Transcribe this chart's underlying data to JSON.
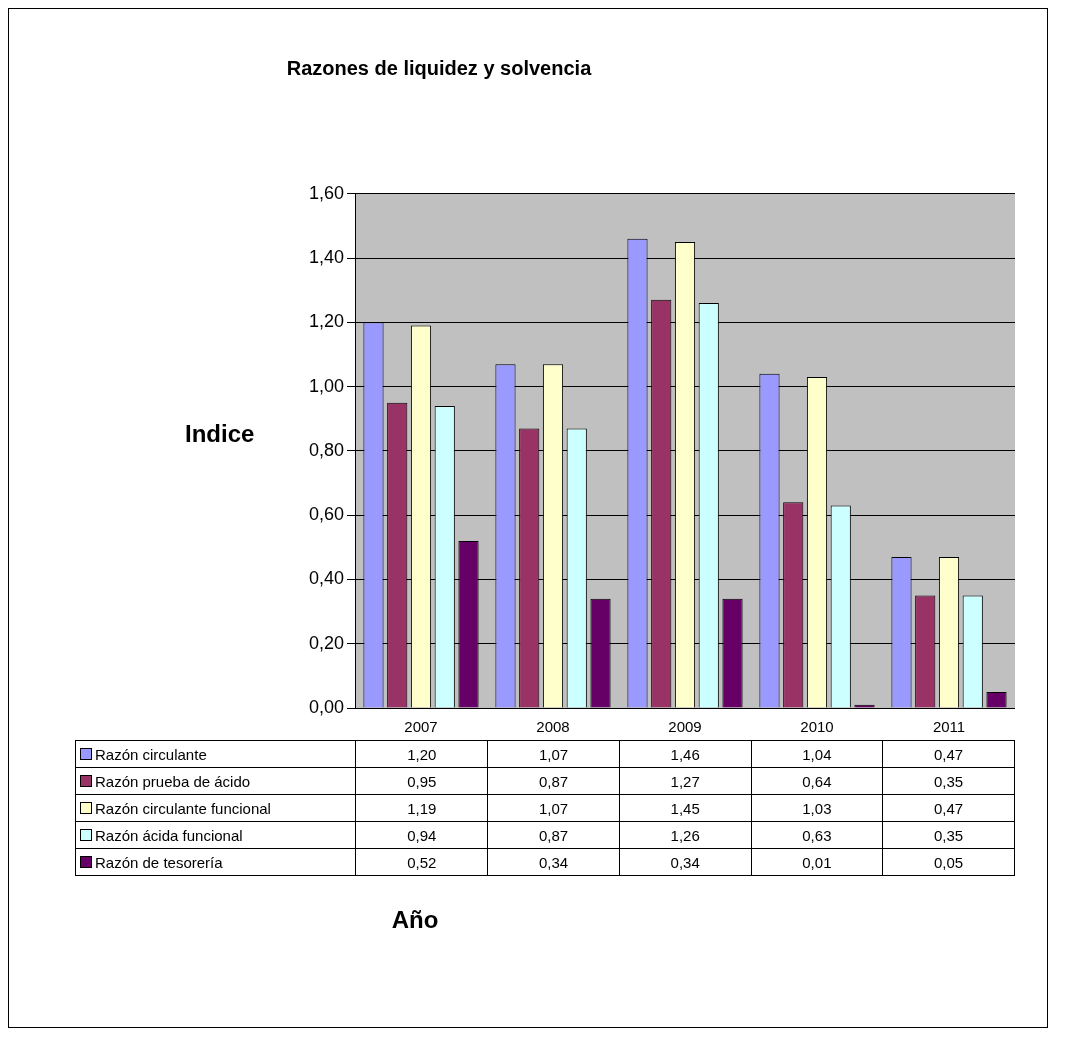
{
  "chart_data": {
    "type": "bar",
    "title": "Razones de liquidez y solvencia",
    "annotations": [
      "Año"
    ],
    "ylabel": "Indice",
    "categories": [
      "2007",
      "2008",
      "2009",
      "2010",
      "2011"
    ],
    "series": [
      {
        "name": "Razón circulante",
        "color": "#9999ff",
        "values": [
          1.2,
          1.07,
          1.46,
          1.04,
          0.47
        ],
        "value_labels": [
          "1,20",
          "1,07",
          "1,46",
          "1,04",
          "0,47"
        ]
      },
      {
        "name": "Razón prueba de ácido",
        "color": "#993366",
        "values": [
          0.95,
          0.87,
          1.27,
          0.64,
          0.35
        ],
        "value_labels": [
          "0,95",
          "0,87",
          "1,27",
          "0,64",
          "0,35"
        ]
      },
      {
        "name": "Razón circulante funcional",
        "color": "#ffffcc",
        "values": [
          1.19,
          1.07,
          1.45,
          1.03,
          0.47
        ],
        "value_labels": [
          "1,19",
          "1,07",
          "1,45",
          "1,03",
          "0,47"
        ]
      },
      {
        "name": "Razón ácida funcional",
        "color": "#ccffff",
        "values": [
          0.94,
          0.87,
          1.26,
          0.63,
          0.35
        ],
        "value_labels": [
          "0,94",
          "0,87",
          "1,26",
          "0,63",
          "0,35"
        ]
      },
      {
        "name": "Razón de tesorería",
        "color": "#660066",
        "values": [
          0.52,
          0.34,
          0.34,
          0.01,
          0.05
        ],
        "value_labels": [
          "0,52",
          "0,34",
          "0,34",
          "0,01",
          "0,05"
        ]
      }
    ],
    "ylim": [
      0,
      1.6
    ],
    "yticks": [
      {
        "value": 0,
        "label": "0,00"
      },
      {
        "value": 0.2,
        "label": "0,20"
      },
      {
        "value": 0.4,
        "label": "0,40"
      },
      {
        "value": 0.6,
        "label": "0,60"
      },
      {
        "value": 0.8,
        "label": "0,80"
      },
      {
        "value": 1.0,
        "label": "1,00"
      },
      {
        "value": 1.2,
        "label": "1,20"
      },
      {
        "value": 1.4,
        "label": "1,40"
      },
      {
        "value": 1.6,
        "label": "1,60"
      }
    ],
    "grid": "y",
    "legend": "bottom"
  }
}
